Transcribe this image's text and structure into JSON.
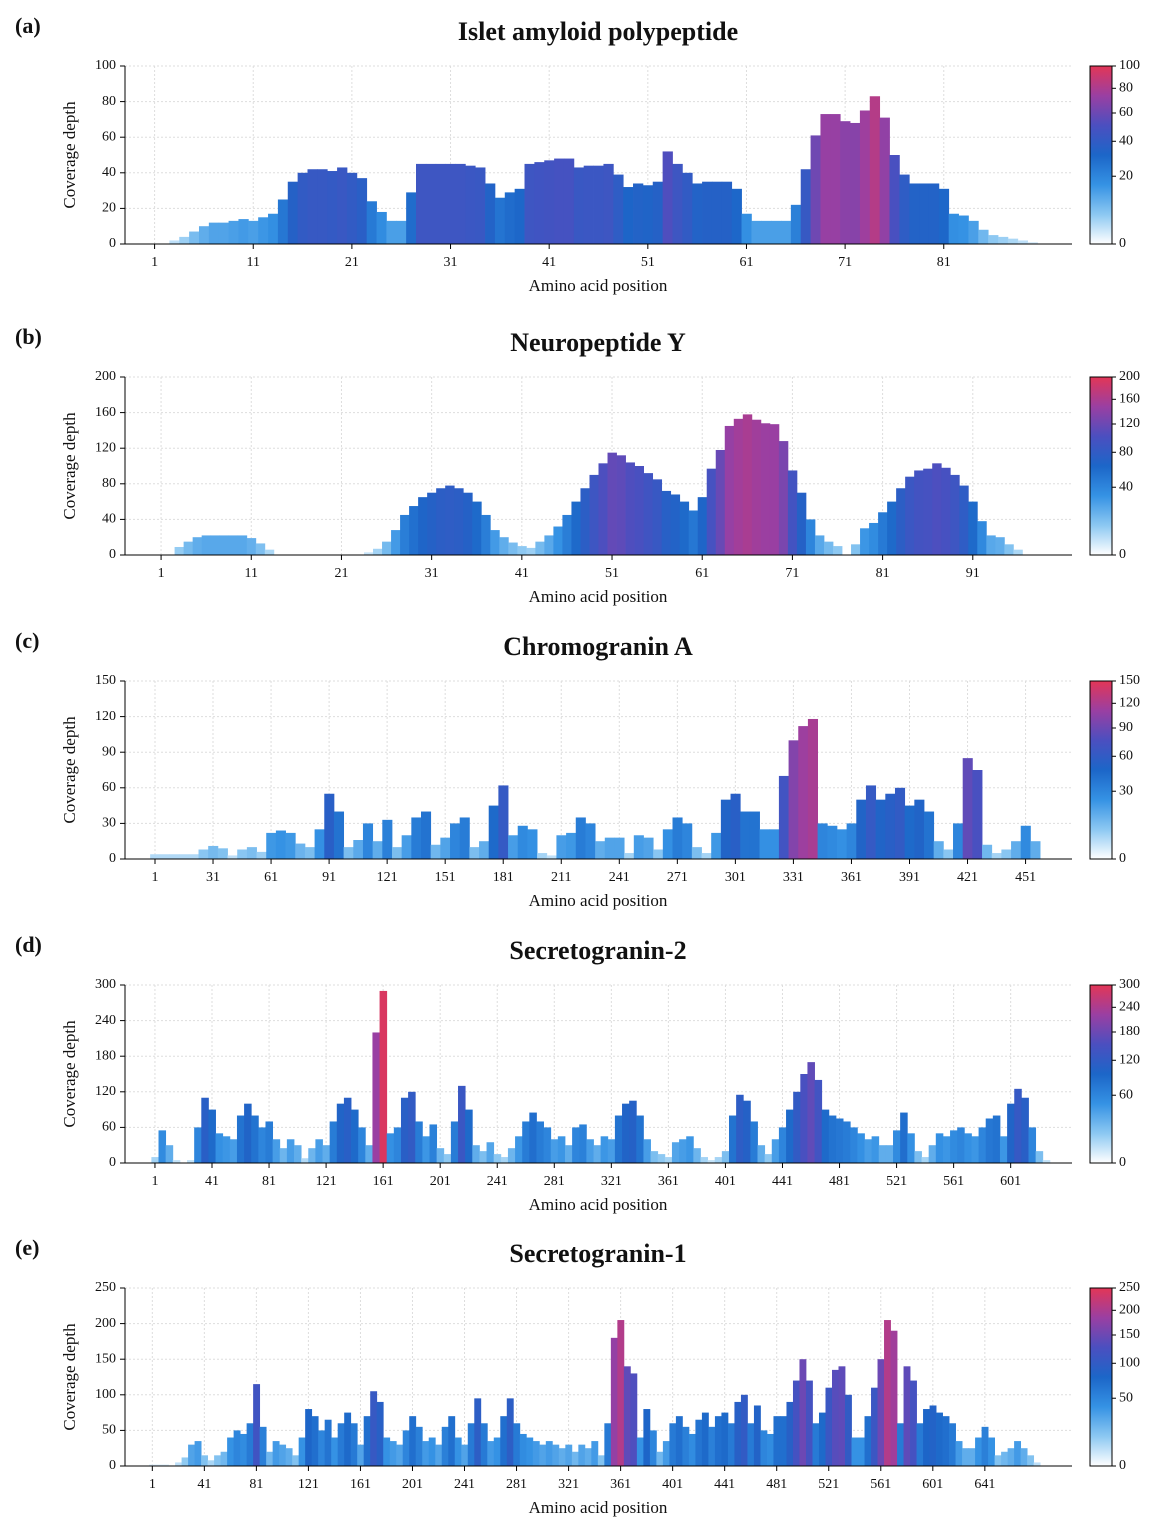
{
  "chart_data": [
    {
      "type": "bar",
      "label": "(a)",
      "title": "Islet amyloid polypeptide",
      "xlabel": "Amino acid position",
      "ylabel": "Coverage depth",
      "x": [
        1,
        2,
        3,
        4,
        5,
        6,
        7,
        8,
        9,
        10,
        11,
        12,
        13,
        14,
        15,
        16,
        17,
        18,
        19,
        20,
        21,
        22,
        23,
        24,
        25,
        26,
        27,
        28,
        29,
        30,
        31,
        32,
        33,
        34,
        35,
        36,
        37,
        38,
        39,
        40,
        41,
        42,
        43,
        44,
        45,
        46,
        47,
        48,
        49,
        50,
        51,
        52,
        53,
        54,
        55,
        56,
        57,
        58,
        59,
        60,
        61,
        62,
        63,
        64,
        65,
        66,
        67,
        68,
        69,
        70,
        71,
        72,
        73,
        74,
        75,
        76,
        77,
        78,
        79,
        80,
        81,
        82,
        83,
        84,
        85,
        86,
        87,
        88,
        89,
        90
      ],
      "values": [
        0,
        0,
        2,
        4,
        7,
        10,
        12,
        12,
        13,
        14,
        13,
        15,
        17,
        25,
        35,
        40,
        42,
        42,
        41,
        43,
        40,
        37,
        24,
        18,
        13,
        13,
        29,
        45,
        45,
        45,
        45,
        45,
        44,
        43,
        34,
        26,
        29,
        31,
        45,
        46,
        47,
        48,
        48,
        43,
        44,
        44,
        45,
        39,
        32,
        34,
        33,
        35,
        52,
        45,
        40,
        34,
        35,
        35,
        35,
        31,
        17,
        13,
        13,
        13,
        13,
        22,
        42,
        61,
        73,
        73,
        69,
        68,
        75,
        83,
        71,
        50,
        39,
        34,
        34,
        34,
        31,
        17,
        16,
        13,
        8,
        5,
        4,
        3,
        2,
        1
      ],
      "xlim": [
        -2,
        94
      ],
      "ylim": [
        0,
        100
      ],
      "xticks": [
        1,
        11,
        21,
        31,
        41,
        51,
        61,
        71,
        81
      ],
      "yticks": [
        0,
        20,
        40,
        60,
        80,
        100
      ],
      "grid": true,
      "colormap": [
        "#ffffff",
        "#8cc8f2",
        "#3592e4",
        "#1c66c8",
        "#4b4fc0",
        "#9a3fa2",
        "#e23657"
      ],
      "colorbar": {
        "ylim": [
          0,
          100
        ],
        "yticks": [
          0,
          20,
          40,
          60,
          80,
          100
        ]
      }
    },
    {
      "type": "bar",
      "label": "(b)",
      "title": "Neuropeptide Y",
      "xlabel": "Amino acid position",
      "ylabel": "Coverage depth",
      "x": [
        1,
        2,
        3,
        4,
        5,
        6,
        7,
        8,
        9,
        10,
        11,
        12,
        13,
        14,
        15,
        16,
        17,
        18,
        19,
        20,
        21,
        22,
        23,
        24,
        25,
        26,
        27,
        28,
        29,
        30,
        31,
        32,
        33,
        34,
        35,
        36,
        37,
        38,
        39,
        40,
        41,
        42,
        43,
        44,
        45,
        46,
        47,
        48,
        49,
        50,
        51,
        52,
        53,
        54,
        55,
        56,
        57,
        58,
        59,
        60,
        61,
        62,
        63,
        64,
        65,
        66,
        67,
        68,
        69,
        70,
        71,
        72,
        73,
        74,
        75,
        76,
        77,
        78,
        79,
        80,
        81,
        82,
        83,
        84,
        85,
        86,
        87,
        88,
        89,
        90,
        91,
        92,
        93,
        94,
        95,
        96
      ],
      "values": [
        0,
        0,
        9,
        15,
        20,
        22,
        22,
        22,
        22,
        22,
        19,
        13,
        6,
        0,
        0,
        0,
        0,
        0,
        0,
        0,
        0,
        0,
        0,
        3,
        7,
        15,
        28,
        45,
        55,
        65,
        70,
        75,
        78,
        75,
        70,
        60,
        45,
        28,
        20,
        14,
        10,
        8,
        15,
        22,
        32,
        45,
        60,
        75,
        90,
        103,
        115,
        112,
        104,
        100,
        92,
        85,
        72,
        68,
        60,
        50,
        65,
        97,
        118,
        145,
        153,
        158,
        152,
        148,
        147,
        128,
        95,
        70,
        40,
        22,
        15,
        10,
        0,
        12,
        30,
        36,
        48,
        60,
        75,
        88,
        95,
        97,
        103,
        98,
        90,
        78,
        60,
        38,
        22,
        20,
        12,
        6
      ],
      "xlim": [
        -3,
        102
      ],
      "ylim": [
        0,
        200
      ],
      "xticks": [
        1,
        11,
        21,
        31,
        41,
        51,
        61,
        71,
        81,
        91
      ],
      "yticks": [
        0,
        40,
        80,
        120,
        160,
        200
      ],
      "grid": true,
      "colormap": [
        "#ffffff",
        "#8cc8f2",
        "#3592e4",
        "#1c66c8",
        "#4b4fc0",
        "#9a3fa2",
        "#e23657"
      ],
      "colorbar": {
        "ylim": [
          0,
          200
        ],
        "yticks": [
          0,
          40,
          80,
          120,
          160,
          200
        ]
      }
    },
    {
      "type": "bar",
      "label": "(c)",
      "title": "Chromogranin A",
      "xlabel": "Amino acid position",
      "ylabel": "Coverage depth",
      "x": [
        1,
        6,
        11,
        16,
        21,
        26,
        31,
        36,
        41,
        46,
        51,
        56,
        61,
        66,
        71,
        76,
        81,
        86,
        91,
        96,
        101,
        106,
        111,
        116,
        121,
        126,
        131,
        136,
        141,
        146,
        151,
        156,
        161,
        166,
        171,
        176,
        181,
        186,
        191,
        196,
        201,
        206,
        211,
        216,
        221,
        226,
        231,
        236,
        241,
        246,
        251,
        256,
        261,
        266,
        271,
        276,
        281,
        286,
        291,
        296,
        301,
        306,
        311,
        316,
        321,
        326,
        331,
        336,
        341,
        346,
        351,
        356,
        361,
        366,
        371,
        376,
        381,
        386,
        391,
        396,
        401,
        406,
        411,
        416,
        421,
        426,
        431,
        436,
        441,
        446,
        451,
        456
      ],
      "values": [
        4,
        4,
        4,
        4,
        4,
        8,
        11,
        9,
        3,
        8,
        10,
        6,
        22,
        24,
        22,
        13,
        10,
        25,
        55,
        40,
        10,
        16,
        30,
        15,
        33,
        10,
        20,
        35,
        40,
        12,
        18,
        30,
        35,
        10,
        15,
        45,
        62,
        20,
        28,
        25,
        5,
        3,
        20,
        22,
        35,
        30,
        15,
        18,
        18,
        5,
        20,
        18,
        8,
        25,
        35,
        30,
        10,
        5,
        22,
        50,
        55,
        40,
        40,
        25,
        25,
        70,
        100,
        112,
        118,
        30,
        28,
        25,
        30,
        50,
        62,
        50,
        55,
        60,
        45,
        50,
        40,
        15,
        8,
        30,
        85,
        75,
        12,
        5,
        8,
        15,
        28,
        15
      ],
      "xlim": [
        -14.5,
        475
      ],
      "ylim": [
        0,
        150
      ],
      "xticks": [
        1,
        31,
        61,
        91,
        121,
        151,
        181,
        211,
        241,
        271,
        301,
        331,
        361,
        391,
        421,
        451
      ],
      "yticks": [
        0,
        30,
        60,
        90,
        120,
        150
      ],
      "grid": true,
      "colormap": [
        "#ffffff",
        "#8cc8f2",
        "#3592e4",
        "#1c66c8",
        "#4b4fc0",
        "#9a3fa2",
        "#e23657"
      ],
      "colorbar": {
        "ylim": [
          0,
          150
        ],
        "yticks": [
          0,
          30,
          60,
          90,
          120,
          150
        ]
      }
    },
    {
      "type": "bar",
      "label": "(d)",
      "title": "Secretogranin-2",
      "xlabel": "Amino acid position",
      "ylabel": "Coverage depth",
      "x": [
        1,
        6,
        11,
        16,
        21,
        26,
        31,
        36,
        41,
        46,
        51,
        56,
        61,
        66,
        71,
        76,
        81,
        86,
        91,
        96,
        101,
        106,
        111,
        116,
        121,
        126,
        131,
        136,
        141,
        146,
        151,
        156,
        161,
        166,
        171,
        176,
        181,
        186,
        191,
        196,
        201,
        206,
        211,
        216,
        221,
        226,
        231,
        236,
        241,
        246,
        251,
        256,
        261,
        266,
        271,
        276,
        281,
        286,
        291,
        296,
        301,
        306,
        311,
        316,
        321,
        326,
        331,
        336,
        341,
        346,
        351,
        356,
        361,
        366,
        371,
        376,
        381,
        386,
        391,
        396,
        401,
        406,
        411,
        416,
        421,
        426,
        431,
        436,
        441,
        446,
        451,
        456,
        461,
        466,
        471,
        476,
        481,
        486,
        491,
        496,
        501,
        506,
        511,
        516,
        521,
        526,
        531,
        536,
        541,
        546,
        551,
        556,
        561,
        566,
        571,
        576,
        581,
        586,
        591,
        596,
        601,
        606,
        611,
        616,
        621,
        626
      ],
      "values": [
        10,
        55,
        30,
        5,
        0,
        5,
        60,
        110,
        90,
        50,
        45,
        40,
        80,
        100,
        80,
        60,
        70,
        40,
        25,
        40,
        30,
        8,
        25,
        40,
        30,
        70,
        100,
        110,
        90,
        60,
        30,
        220,
        290,
        50,
        60,
        110,
        120,
        70,
        45,
        65,
        25,
        15,
        70,
        130,
        90,
        30,
        20,
        35,
        15,
        10,
        25,
        45,
        70,
        85,
        70,
        60,
        40,
        45,
        30,
        60,
        65,
        40,
        30,
        45,
        40,
        80,
        100,
        105,
        80,
        40,
        20,
        15,
        10,
        35,
        40,
        45,
        25,
        10,
        5,
        10,
        20,
        80,
        115,
        105,
        70,
        30,
        15,
        40,
        60,
        90,
        120,
        150,
        170,
        140,
        90,
        80,
        75,
        70,
        60,
        50,
        40,
        45,
        30,
        30,
        55,
        85,
        50,
        20,
        10,
        30,
        50,
        45,
        55,
        60,
        50,
        45,
        60,
        75,
        80,
        45,
        100,
        125,
        110,
        60,
        20,
        5
      ],
      "xlim": [
        -20,
        644
      ],
      "ylim": [
        0,
        300
      ],
      "xticks": [
        1,
        41,
        81,
        121,
        161,
        201,
        241,
        281,
        321,
        361,
        401,
        441,
        481,
        521,
        561,
        601
      ],
      "yticks": [
        0,
        60,
        120,
        180,
        240,
        300
      ],
      "grid": true,
      "colormap": [
        "#ffffff",
        "#8cc8f2",
        "#3592e4",
        "#1c66c8",
        "#4b4fc0",
        "#9a3fa2",
        "#e23657"
      ],
      "colorbar": {
        "ylim": [
          0,
          300
        ],
        "yticks": [
          0,
          60,
          120,
          180,
          240,
          300
        ]
      }
    },
    {
      "type": "bar",
      "label": "(e)",
      "title": "Secretogranin-1",
      "xlabel": "Amino acid position",
      "ylabel": "Coverage depth",
      "x": [
        1,
        6,
        11,
        16,
        21,
        26,
        31,
        36,
        41,
        46,
        51,
        56,
        61,
        66,
        71,
        76,
        81,
        86,
        91,
        96,
        101,
        106,
        111,
        116,
        121,
        126,
        131,
        136,
        141,
        146,
        151,
        156,
        161,
        166,
        171,
        176,
        181,
        186,
        191,
        196,
        201,
        206,
        211,
        216,
        221,
        226,
        231,
        236,
        241,
        246,
        251,
        256,
        261,
        266,
        271,
        276,
        281,
        286,
        291,
        296,
        301,
        306,
        311,
        316,
        321,
        326,
        331,
        336,
        341,
        346,
        351,
        356,
        361,
        366,
        371,
        376,
        381,
        386,
        391,
        396,
        401,
        406,
        411,
        416,
        421,
        426,
        431,
        436,
        441,
        446,
        451,
        456,
        461,
        466,
        471,
        476,
        481,
        486,
        491,
        496,
        501,
        506,
        511,
        516,
        521,
        526,
        531,
        536,
        541,
        546,
        551,
        556,
        561,
        566,
        571,
        576,
        581,
        586,
        591,
        596,
        601,
        606,
        611,
        616,
        621,
        626,
        631,
        636,
        641,
        646,
        651,
        656,
        661,
        666,
        671,
        676,
        681
      ],
      "values": [
        2,
        2,
        2,
        1,
        5,
        12,
        30,
        35,
        15,
        8,
        15,
        20,
        40,
        50,
        45,
        60,
        115,
        55,
        20,
        35,
        30,
        25,
        15,
        40,
        80,
        70,
        50,
        65,
        40,
        60,
        75,
        60,
        30,
        70,
        105,
        90,
        40,
        35,
        30,
        50,
        70,
        55,
        35,
        40,
        30,
        55,
        70,
        40,
        30,
        60,
        95,
        60,
        35,
        40,
        70,
        95,
        60,
        45,
        40,
        35,
        30,
        35,
        30,
        25,
        30,
        20,
        30,
        25,
        35,
        15,
        60,
        180,
        205,
        140,
        130,
        40,
        80,
        50,
        20,
        35,
        60,
        70,
        55,
        45,
        65,
        75,
        55,
        70,
        75,
        60,
        90,
        100,
        60,
        85,
        50,
        45,
        70,
        70,
        90,
        120,
        150,
        120,
        60,
        75,
        110,
        135,
        140,
        100,
        40,
        40,
        70,
        110,
        150,
        205,
        190,
        60,
        140,
        120,
        60,
        80,
        85,
        75,
        70,
        60,
        35,
        25,
        25,
        40,
        55,
        40,
        15,
        20,
        25,
        35,
        25,
        15,
        5
      ],
      "xlim": [
        -20,
        708
      ],
      "ylim": [
        0,
        250
      ],
      "xticks": [
        1,
        41,
        81,
        121,
        161,
        201,
        241,
        281,
        321,
        361,
        401,
        441,
        481,
        521,
        561,
        601,
        641
      ],
      "yticks": [
        0,
        50,
        100,
        150,
        200,
        250
      ],
      "grid": true,
      "colormap": [
        "#ffffff",
        "#8cc8f2",
        "#3592e4",
        "#1c66c8",
        "#4b4fc0",
        "#9a3fa2",
        "#e23657"
      ],
      "colorbar": {
        "ylim": [
          0,
          250
        ],
        "yticks": [
          0,
          50,
          100,
          150,
          200,
          250
        ]
      }
    }
  ]
}
